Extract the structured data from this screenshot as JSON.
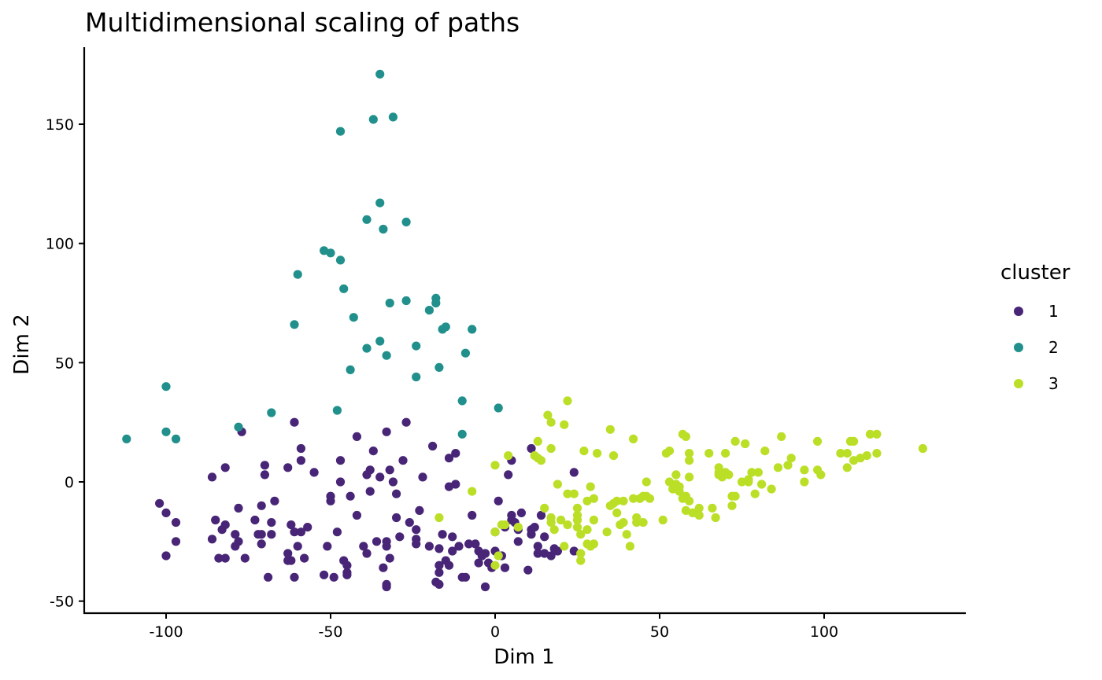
{
  "chart_data": {
    "type": "scatter",
    "title": "Multidimensional scaling of paths",
    "xlabel": "Dim 1",
    "ylabel": "Dim 2",
    "xlim": [
      -125,
      142
    ],
    "ylim": [
      -55,
      182
    ],
    "xticks": [
      -100,
      -50,
      0,
      50,
      100
    ],
    "yticks": [
      -50,
      0,
      50,
      100,
      150
    ],
    "grid": false,
    "legend": {
      "title": "cluster",
      "position": "right"
    },
    "series": [
      {
        "name": "1",
        "color": "#482576",
        "points": [
          [
            -102,
            -9
          ],
          [
            -100,
            -31
          ],
          [
            -100,
            -13
          ],
          [
            -97,
            -17
          ],
          [
            -97,
            -25
          ],
          [
            -86,
            -24
          ],
          [
            -86,
            2
          ],
          [
            -85,
            -16
          ],
          [
            -84,
            -32
          ],
          [
            -83,
            -20
          ],
          [
            -82,
            -18
          ],
          [
            -82,
            -32
          ],
          [
            -82,
            6
          ],
          [
            -79,
            -27
          ],
          [
            -79,
            -22
          ],
          [
            -78,
            -25
          ],
          [
            -78,
            -11
          ],
          [
            -77,
            21
          ],
          [
            -76,
            -32
          ],
          [
            -73,
            -16
          ],
          [
            -72,
            -22
          ],
          [
            -71,
            -26
          ],
          [
            -71,
            -22
          ],
          [
            -71,
            -10
          ],
          [
            -70,
            3
          ],
          [
            -70,
            7
          ],
          [
            -69,
            -40
          ],
          [
            -68,
            -22
          ],
          [
            -68,
            -17
          ],
          [
            -67,
            -8
          ],
          [
            -63,
            -33
          ],
          [
            -63,
            -30
          ],
          [
            -63,
            6
          ],
          [
            -62,
            -18
          ],
          [
            -62,
            -33
          ],
          [
            -61,
            -40
          ],
          [
            -61,
            -21
          ],
          [
            -61,
            25
          ],
          [
            -60,
            -27
          ],
          [
            -59,
            -21
          ],
          [
            -59,
            14
          ],
          [
            -59,
            9
          ],
          [
            -58,
            -32
          ],
          [
            -57,
            -19
          ],
          [
            -55,
            4
          ],
          [
            -52,
            -39
          ],
          [
            -51,
            -27
          ],
          [
            -50,
            -6
          ],
          [
            -50,
            -8
          ],
          [
            -49,
            -40
          ],
          [
            -48,
            -21
          ],
          [
            -47,
            0
          ],
          [
            -47,
            9
          ],
          [
            -46,
            -33
          ],
          [
            -45,
            -38
          ],
          [
            -45,
            -35
          ],
          [
            -45,
            -39
          ],
          [
            -44,
            -6
          ],
          [
            -42,
            -14
          ],
          [
            -42,
            19
          ],
          [
            -40,
            -27
          ],
          [
            -39,
            -30
          ],
          [
            -39,
            3
          ],
          [
            -38,
            -4
          ],
          [
            -38,
            5
          ],
          [
            -37,
            13
          ],
          [
            -36,
            -25
          ],
          [
            -35,
            2
          ],
          [
            -34,
            -36
          ],
          [
            -33,
            -27
          ],
          [
            -33,
            -44
          ],
          [
            -33,
            -25
          ],
          [
            -33,
            -43
          ],
          [
            -33,
            21
          ],
          [
            -32,
            -32
          ],
          [
            -32,
            5
          ],
          [
            -31,
            0
          ],
          [
            -30,
            -15
          ],
          [
            -30,
            -5
          ],
          [
            -29,
            -23
          ],
          [
            -28,
            9
          ],
          [
            -27,
            25
          ],
          [
            -26,
            -17
          ],
          [
            -24,
            -24
          ],
          [
            -24,
            -20
          ],
          [
            -24,
            -26
          ],
          [
            -23,
            -12
          ],
          [
            -22,
            2
          ],
          [
            -20,
            -27
          ],
          [
            -19,
            15
          ],
          [
            -18,
            -42
          ],
          [
            -17,
            -38
          ],
          [
            -17,
            -28
          ],
          [
            -17,
            -43
          ],
          [
            -17,
            -35
          ],
          [
            -16,
            -22
          ],
          [
            -15,
            -33
          ],
          [
            -14,
            10
          ],
          [
            -14,
            -2
          ],
          [
            -14,
            -35
          ],
          [
            -13,
            -29
          ],
          [
            -13,
            -23
          ],
          [
            -12,
            -1
          ],
          [
            -12,
            12
          ],
          [
            -11,
            -27
          ],
          [
            -10,
            -40
          ],
          [
            -9,
            -40
          ],
          [
            -8,
            -26
          ],
          [
            -7,
            -14
          ],
          [
            -6,
            -26
          ],
          [
            -5,
            -34
          ],
          [
            -5,
            -29
          ],
          [
            -4,
            -31
          ],
          [
            -3,
            -44
          ],
          [
            -3,
            -30
          ],
          [
            -2,
            -34
          ],
          [
            -1,
            -36
          ],
          [
            0,
            -29
          ],
          [
            0,
            -21
          ],
          [
            1,
            -8
          ],
          [
            2,
            -31
          ],
          [
            3,
            -19
          ],
          [
            3,
            -36
          ],
          [
            4,
            3
          ],
          [
            5,
            -14
          ],
          [
            5,
            -16
          ],
          [
            5,
            9
          ],
          [
            6,
            -17
          ],
          [
            7,
            -25
          ],
          [
            7,
            -20
          ],
          [
            8,
            -13
          ],
          [
            10,
            -37
          ],
          [
            11,
            -22
          ],
          [
            11,
            -20
          ],
          [
            11,
            14
          ],
          [
            12,
            -19
          ],
          [
            13,
            -27
          ],
          [
            13,
            -30
          ],
          [
            14,
            -14
          ],
          [
            15,
            -23
          ],
          [
            15,
            -30
          ],
          [
            17,
            -31
          ],
          [
            18,
            -28
          ],
          [
            19,
            -29
          ],
          [
            24,
            4
          ],
          [
            24,
            -29
          ]
        ]
      },
      {
        "name": "2",
        "color": "#21908C",
        "points": [
          [
            -112,
            18
          ],
          [
            -100,
            40
          ],
          [
            -100,
            21
          ],
          [
            -97,
            18
          ],
          [
            -78,
            23
          ],
          [
            -68,
            29
          ],
          [
            -61,
            66
          ],
          [
            -60,
            87
          ],
          [
            -52,
            97
          ],
          [
            -50,
            96
          ],
          [
            -48,
            30
          ],
          [
            -47,
            93
          ],
          [
            -47,
            147
          ],
          [
            -46,
            81
          ],
          [
            -44,
            47
          ],
          [
            -43,
            69
          ],
          [
            -39,
            110
          ],
          [
            -39,
            56
          ],
          [
            -37,
            152
          ],
          [
            -35,
            171
          ],
          [
            -35,
            117
          ],
          [
            -35,
            59
          ],
          [
            -34,
            106
          ],
          [
            -33,
            53
          ],
          [
            -32,
            75
          ],
          [
            -31,
            153
          ],
          [
            -27,
            76
          ],
          [
            -27,
            109
          ],
          [
            -24,
            57
          ],
          [
            -24,
            44
          ],
          [
            -20,
            72
          ],
          [
            -18,
            77
          ],
          [
            -18,
            75
          ],
          [
            -17,
            48
          ],
          [
            -16,
            64
          ],
          [
            -15,
            65
          ],
          [
            -10,
            34
          ],
          [
            -10,
            20
          ],
          [
            -9,
            54
          ],
          [
            -7,
            64
          ],
          [
            1,
            31
          ]
        ]
      },
      {
        "name": "3",
        "color": "#BBDF27",
        "points": [
          [
            -17,
            -15
          ],
          [
            -7,
            -4
          ],
          [
            0,
            7
          ],
          [
            0,
            -35
          ],
          [
            0,
            -21
          ],
          [
            1,
            -31
          ],
          [
            2,
            -18
          ],
          [
            3,
            -18
          ],
          [
            4,
            11
          ],
          [
            7,
            -19
          ],
          [
            12,
            11
          ],
          [
            13,
            17
          ],
          [
            13,
            10
          ],
          [
            14,
            9
          ],
          [
            15,
            -11
          ],
          [
            16,
            28
          ],
          [
            17,
            25
          ],
          [
            17,
            14
          ],
          [
            17,
            -17
          ],
          [
            17,
            -15
          ],
          [
            18,
            -20
          ],
          [
            19,
            -1
          ],
          [
            20,
            -16
          ],
          [
            21,
            -27
          ],
          [
            21,
            24
          ],
          [
            22,
            -5
          ],
          [
            22,
            34
          ],
          [
            22,
            -18
          ],
          [
            24,
            -5
          ],
          [
            25,
            -16
          ],
          [
            25,
            -11
          ],
          [
            25,
            -14
          ],
          [
            25,
            -19
          ],
          [
            26,
            -30
          ],
          [
            26,
            -33
          ],
          [
            26,
            -22
          ],
          [
            27,
            13
          ],
          [
            28,
            -8
          ],
          [
            28,
            -26
          ],
          [
            28,
            -20
          ],
          [
            29,
            -27
          ],
          [
            29,
            -2
          ],
          [
            30,
            -26
          ],
          [
            30,
            -7
          ],
          [
            30,
            -16
          ],
          [
            31,
            12
          ],
          [
            34,
            -21
          ],
          [
            35,
            -10
          ],
          [
            35,
            22
          ],
          [
            36,
            -9
          ],
          [
            36,
            11
          ],
          [
            37,
            -8
          ],
          [
            37,
            -13
          ],
          [
            38,
            -18
          ],
          [
            39,
            -8
          ],
          [
            39,
            -17
          ],
          [
            40,
            -22
          ],
          [
            41,
            -27
          ],
          [
            42,
            -7
          ],
          [
            42,
            18
          ],
          [
            43,
            -15
          ],
          [
            43,
            -17
          ],
          [
            44,
            -7
          ],
          [
            44,
            -7
          ],
          [
            45,
            -6
          ],
          [
            45,
            -17
          ],
          [
            46,
            0
          ],
          [
            46,
            -6
          ],
          [
            47,
            -7
          ],
          [
            51,
            -16
          ],
          [
            52,
            12
          ],
          [
            53,
            0
          ],
          [
            53,
            13
          ],
          [
            54,
            -3
          ],
          [
            55,
            3
          ],
          [
            55,
            -1
          ],
          [
            56,
            -4
          ],
          [
            56,
            -2
          ],
          [
            57,
            -7
          ],
          [
            57,
            20
          ],
          [
            58,
            19
          ],
          [
            58,
            -6
          ],
          [
            58,
            -12
          ],
          [
            59,
            2
          ],
          [
            59,
            9
          ],
          [
            59,
            -8
          ],
          [
            59,
            12
          ],
          [
            60,
            -13
          ],
          [
            61,
            -13
          ],
          [
            62,
            -11
          ],
          [
            62,
            -14
          ],
          [
            65,
            12
          ],
          [
            66,
            -11
          ],
          [
            67,
            -15
          ],
          [
            68,
            6
          ],
          [
            68,
            3
          ],
          [
            68,
            4
          ],
          [
            69,
            2
          ],
          [
            70,
            12
          ],
          [
            70,
            4
          ],
          [
            71,
            3
          ],
          [
            72,
            -6
          ],
          [
            72,
            -10
          ],
          [
            73,
            17
          ],
          [
            73,
            -6
          ],
          [
            75,
            0
          ],
          [
            76,
            16
          ],
          [
            77,
            1
          ],
          [
            77,
            0
          ],
          [
            78,
            4
          ],
          [
            79,
            -5
          ],
          [
            80,
            4
          ],
          [
            81,
            -1
          ],
          [
            82,
            13
          ],
          [
            84,
            -3
          ],
          [
            86,
            6
          ],
          [
            87,
            19
          ],
          [
            89,
            7
          ],
          [
            90,
            10
          ],
          [
            94,
            0
          ],
          [
            94,
            5
          ],
          [
            98,
            17
          ],
          [
            98,
            5
          ],
          [
            99,
            3
          ],
          [
            105,
            12
          ],
          [
            107,
            12
          ],
          [
            107,
            6
          ],
          [
            108,
            17
          ],
          [
            109,
            17
          ],
          [
            109,
            9
          ],
          [
            111,
            10
          ],
          [
            113,
            11
          ],
          [
            114,
            20
          ],
          [
            116,
            20
          ],
          [
            116,
            12
          ],
          [
            130,
            14
          ]
        ]
      }
    ]
  }
}
